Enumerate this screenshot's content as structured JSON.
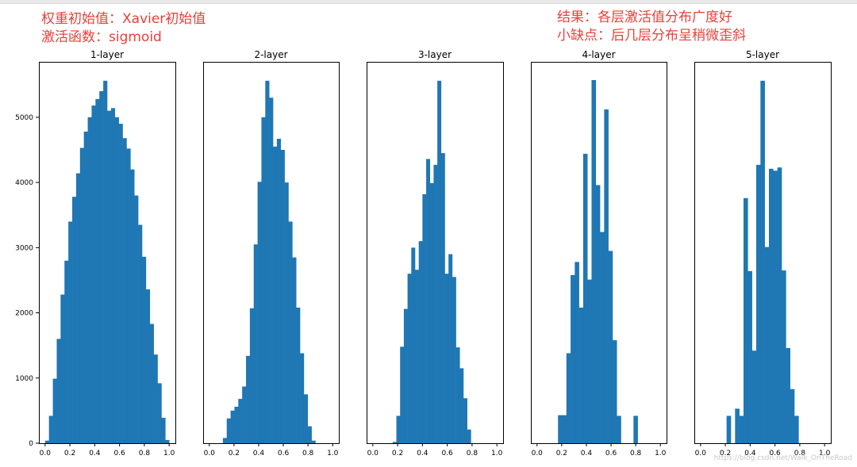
{
  "annotations": {
    "left": [
      "权重初始值：Xavier初始值",
      "激活函数：sigmoid"
    ],
    "right": [
      "结果：各层激活值分布广度好",
      "小缺点：后几层分布呈稍微歪斜"
    ]
  },
  "watermark": "https://blog.csdn.net/Walk_OnTheRoad",
  "colors": {
    "bar": "#1f77b4",
    "annotation": "#e8413a",
    "axis": "#000000"
  },
  "chart_data": [
    {
      "type": "bar",
      "title": "1-layer",
      "xlim": [
        -0.05,
        1.05
      ],
      "ylim": [
        0,
        5850
      ],
      "xticks": [
        "0.0",
        "0.2",
        "0.4",
        "0.6",
        "0.8",
        "1.0"
      ],
      "yticks": [
        "0",
        "1000",
        "2000",
        "3000",
        "4000",
        "5000"
      ],
      "bin_edges_start": 0.0,
      "bin_edges_end": 1.0,
      "values": [
        40,
        420,
        990,
        1600,
        2280,
        2800,
        3400,
        3780,
        4140,
        4530,
        4780,
        5000,
        5180,
        5280,
        5400,
        5560,
        5100,
        5140,
        5000,
        4900,
        4680,
        4520,
        4200,
        3800,
        3350,
        2860,
        2360,
        1830,
        1360,
        920,
        390,
        50
      ]
    },
    {
      "type": "bar",
      "title": "2-layer",
      "xlim": [
        -0.05,
        1.05
      ],
      "ylim": [
        0,
        5850
      ],
      "xticks": [
        "0.0",
        "0.2",
        "0.4",
        "0.6",
        "0.8",
        "1.0"
      ],
      "bin_edges_start": 0.11,
      "bin_edges_end": 0.86,
      "values": [
        80,
        380,
        500,
        560,
        680,
        870,
        1340,
        2070,
        3050,
        4010,
        5000,
        5560,
        5300,
        4550,
        4670,
        4500,
        4000,
        3400,
        2850,
        2080,
        1380,
        750,
        260,
        40
      ]
    },
    {
      "type": "bar",
      "title": "3-layer",
      "xlim": [
        -0.05,
        1.05
      ],
      "ylim": [
        0,
        5850
      ],
      "xticks": [
        "0.0",
        "0.2",
        "0.4",
        "0.6",
        "0.8",
        "1.0"
      ],
      "bin_edges_start": 0.16,
      "bin_edges_end": 0.79,
      "values": [
        20,
        420,
        1480,
        2060,
        2600,
        3000,
        2660,
        3100,
        3820,
        4360,
        3990,
        4270,
        5560,
        4450,
        2600,
        2900,
        2550,
        1470,
        1150,
        690,
        210
      ]
    },
    {
      "type": "bar",
      "title": "4-layer",
      "xlim": [
        -0.05,
        1.05
      ],
      "ylim": [
        0,
        5850
      ],
      "xticks": [
        "0.0",
        "0.2",
        "0.4",
        "0.6",
        "0.8",
        "1.0"
      ],
      "bin_edges_start": 0.17,
      "bin_edges_end": 0.85,
      "values": [
        430,
        430,
        1380,
        2580,
        2780,
        2080,
        4440,
        2510,
        5570,
        3960,
        3240,
        5120,
        2950,
        1580,
        420,
        0,
        0,
        0,
        420,
        0
      ]
    },
    {
      "type": "bar",
      "title": "5-layer",
      "xlim": [
        -0.05,
        1.05
      ],
      "ylim": [
        0,
        5850
      ],
      "xticks": [
        "0.0",
        "0.2",
        "0.4",
        "0.6",
        "0.8",
        "1.0"
      ],
      "bin_edges_start": 0.21,
      "bin_edges_end": 0.79,
      "values": [
        420,
        0,
        530,
        420,
        3760,
        2640,
        1420,
        4270,
        5560,
        3010,
        4210,
        4180,
        4230,
        2650,
        1460,
        830,
        420
      ]
    }
  ]
}
